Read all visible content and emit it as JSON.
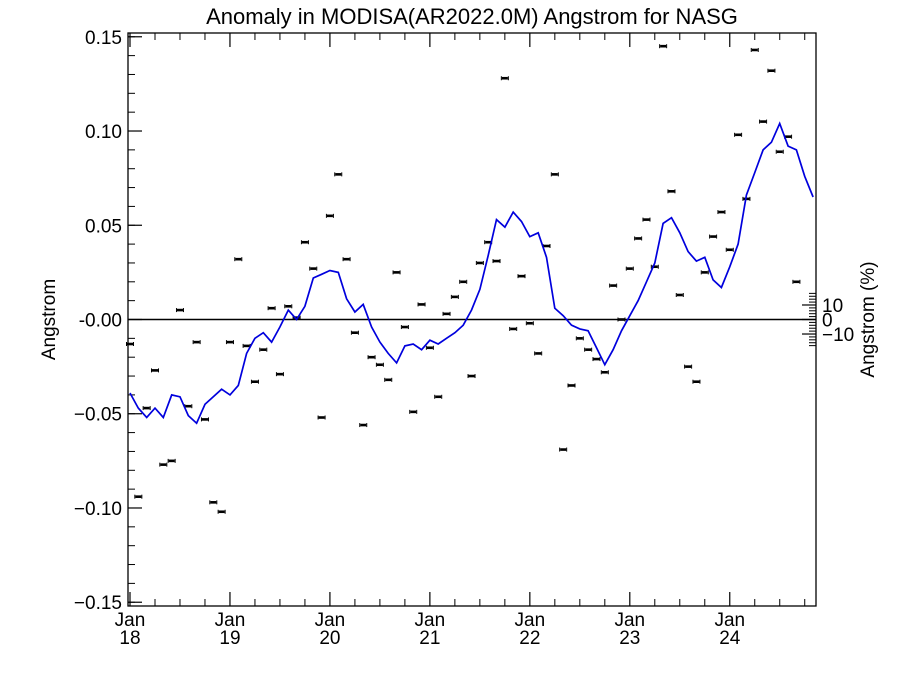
{
  "chart_data": {
    "type": "line",
    "title": "Anomaly in MODISA(AR2022.0M) Angstrom for NASG",
    "ylabel": "Angstrom",
    "ylabel_right": "Angstrom (%)",
    "ylim": [
      -0.152,
      0.152
    ],
    "y_ticks": [
      {
        "value": 0.15,
        "label": "0.15"
      },
      {
        "value": 0.1,
        "label": "0.10"
      },
      {
        "value": 0.05,
        "label": "0.05"
      },
      {
        "value": 0.0,
        "label": "-0.00"
      },
      {
        "value": -0.05,
        "label": "−0.05"
      },
      {
        "value": -0.1,
        "label": "−0.10"
      },
      {
        "value": -0.15,
        "label": "−0.15"
      }
    ],
    "y_right_ticks": [
      {
        "pct": 10,
        "label": "10"
      },
      {
        "pct": 0,
        "label": "0"
      },
      {
        "pct": -10,
        "label": "−10"
      }
    ],
    "x_ticks": [
      {
        "month": 0,
        "month_label": "Jan",
        "year_label": "18"
      },
      {
        "month": 12,
        "month_label": "Jan",
        "year_label": "19"
      },
      {
        "month": 24,
        "month_label": "Jan",
        "year_label": "20"
      },
      {
        "month": 36,
        "month_label": "Jan",
        "year_label": "21"
      },
      {
        "month": 48,
        "month_label": "Jan",
        "year_label": "22"
      },
      {
        "month": 60,
        "month_label": "Jan",
        "year_label": "23"
      },
      {
        "month": 72,
        "month_label": "Jan",
        "year_label": "24"
      }
    ],
    "series": [
      {
        "kind": "monthly_points",
        "color": "#000000",
        "values": [
          -0.013,
          -0.094,
          -0.047,
          -0.027,
          -0.077,
          -0.075,
          0.005,
          -0.046,
          -0.012,
          -0.053,
          -0.097,
          -0.102,
          -0.012,
          0.032,
          -0.014,
          -0.033,
          -0.016,
          0.006,
          -0.029,
          0.007,
          0.001,
          0.041,
          0.027,
          -0.052,
          0.055,
          0.077,
          0.032,
          -0.007,
          -0.056,
          -0.02,
          -0.024,
          -0.032,
          0.025,
          -0.004,
          -0.049,
          0.008,
          -0.015,
          -0.041,
          0.003,
          0.012,
          0.02,
          -0.03,
          0.03,
          0.041,
          0.031,
          0.128,
          -0.005,
          0.023,
          -0.002,
          -0.018,
          0.039,
          0.077,
          -0.069,
          -0.035,
          -0.01,
          -0.016,
          -0.021,
          -0.028,
          0.018,
          0.0,
          0.027,
          0.043,
          0.053,
          0.028,
          0.145,
          0.068,
          0.013,
          -0.025,
          -0.033,
          0.025,
          0.044,
          0.057,
          0.037,
          0.098,
          0.064,
          0.143,
          0.105,
          0.132,
          0.089,
          0.097,
          0.02
        ]
      },
      {
        "kind": "running_mean",
        "color": "#0000dd",
        "values": [
          -0.039,
          -0.047,
          -0.052,
          -0.047,
          -0.052,
          -0.04,
          -0.041,
          -0.051,
          -0.055,
          -0.045,
          -0.041,
          -0.037,
          -0.04,
          -0.035,
          -0.018,
          -0.01,
          -0.007,
          -0.012,
          -0.004,
          0.005,
          0.0,
          0.007,
          0.022,
          0.024,
          0.026,
          0.025,
          0.011,
          0.004,
          0.008,
          -0.004,
          -0.012,
          -0.018,
          -0.023,
          -0.014,
          -0.013,
          -0.016,
          -0.011,
          -0.013,
          -0.01,
          -0.007,
          -0.003,
          0.005,
          0.016,
          0.034,
          0.053,
          0.049,
          0.057,
          0.052,
          0.044,
          0.046,
          0.033,
          0.006,
          0.002,
          -0.003,
          -0.005,
          -0.006,
          -0.015,
          -0.024,
          -0.016,
          -0.006,
          0.002,
          0.01,
          0.02,
          0.03,
          0.051,
          0.054,
          0.046,
          0.036,
          0.031,
          0.033,
          0.021,
          0.017,
          0.028,
          0.04,
          0.066,
          0.078,
          0.09,
          0.094,
          0.104,
          0.092,
          0.09,
          0.076,
          0.065
        ]
      }
    ]
  }
}
